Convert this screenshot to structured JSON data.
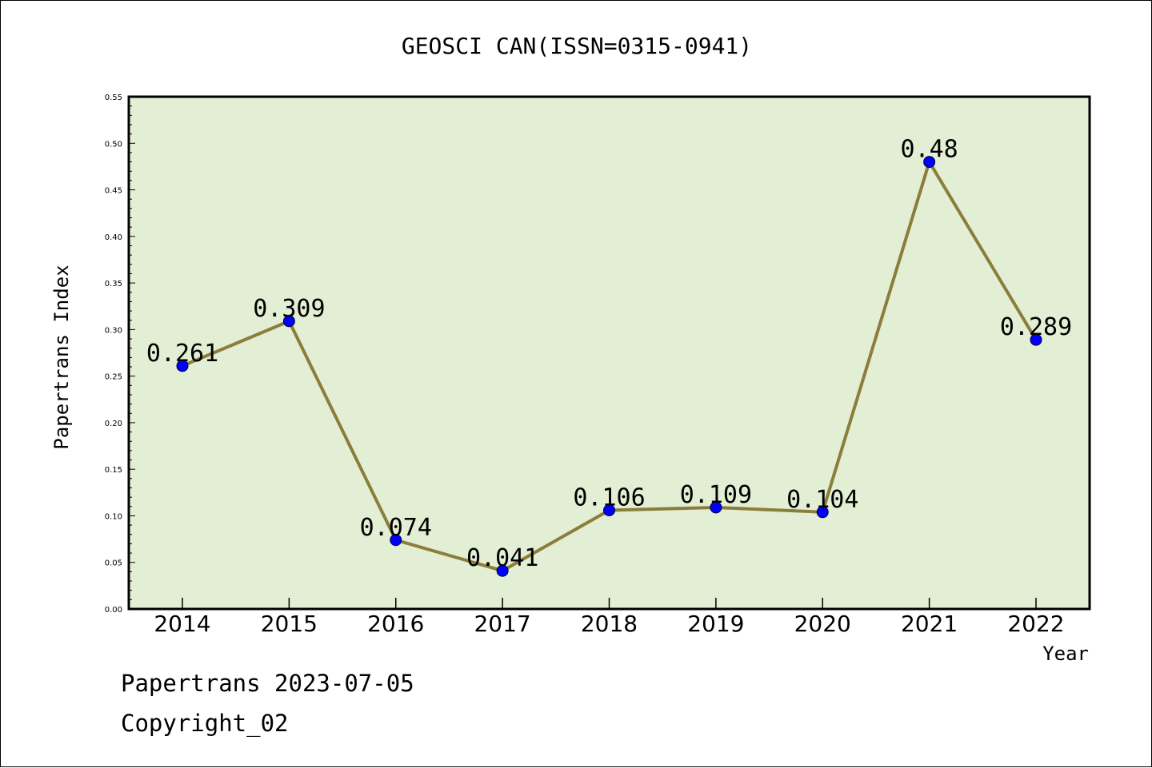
{
  "chart_data": {
    "type": "line",
    "title": "GEOSCI CAN(ISSN=0315-0941)",
    "xlabel": "Year",
    "ylabel": "Papertrans Index",
    "categories": [
      "2014",
      "2015",
      "2016",
      "2017",
      "2018",
      "2019",
      "2020",
      "2021",
      "2022"
    ],
    "values": [
      0.261,
      0.309,
      0.074,
      0.041,
      0.106,
      0.109,
      0.104,
      0.48,
      0.289
    ],
    "data_labels": [
      "0.261",
      "0.309",
      "0.074",
      "0.041",
      "0.106",
      "0.109",
      "0.104",
      "0.48",
      "0.289"
    ],
    "ylim": [
      0,
      0.55
    ],
    "yticks": [
      "0.00",
      "0.05",
      "0.10",
      "0.15",
      "0.20",
      "0.25",
      "0.30",
      "0.35",
      "0.40",
      "0.45",
      "0.50",
      "0.55"
    ],
    "grid": false,
    "legend": "none",
    "colors": {
      "line": "#8b7d3a",
      "marker": "#0000ff",
      "plot_background": "#e2efd5"
    }
  },
  "footer": {
    "date_text": "Papertrans 2023-07-05",
    "copyright_text": "Copyright_02"
  }
}
